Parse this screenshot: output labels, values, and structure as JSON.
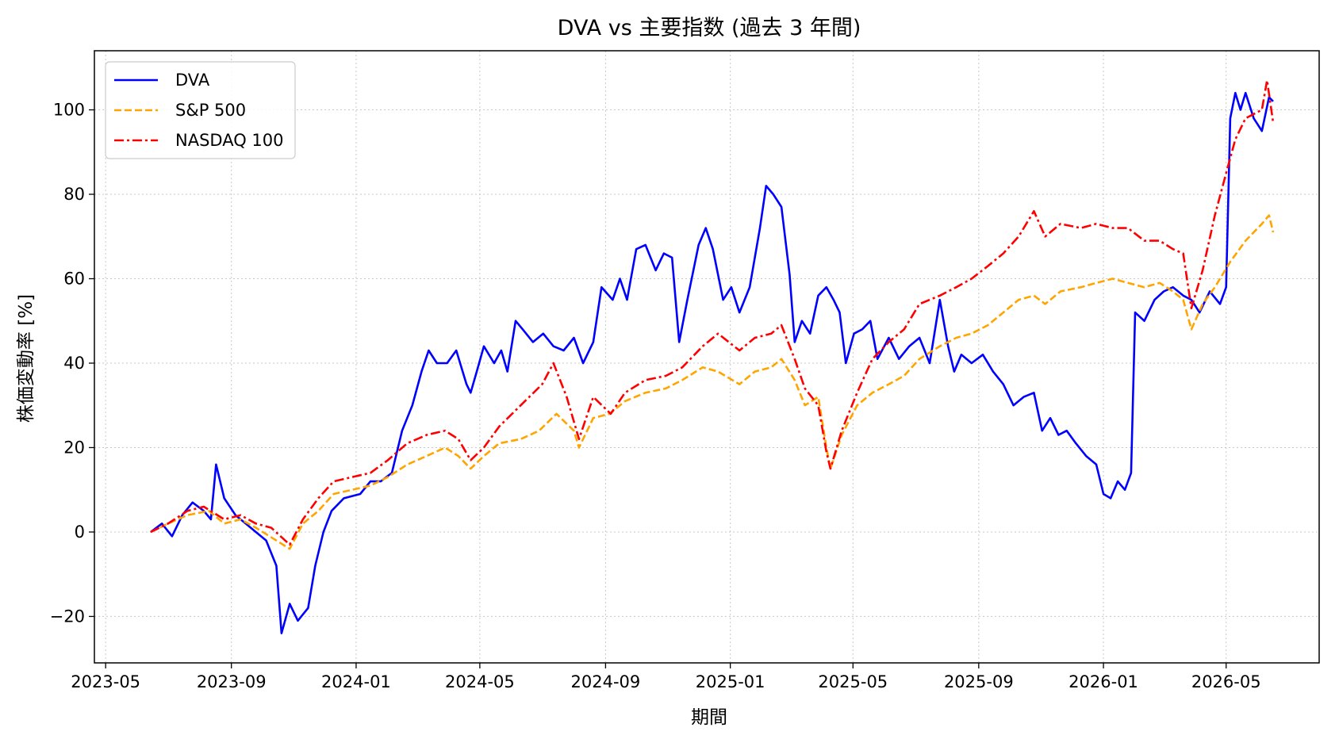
{
  "chart_data": {
    "type": "line",
    "title": "DVA vs 主要指数 (過去 3 年間)",
    "xlabel": "期間",
    "ylabel": "株価変動率 [%]",
    "x_ticks": [
      "2023-05",
      "2023-09",
      "2024-01",
      "2024-05",
      "2024-09",
      "2025-01",
      "2025-05",
      "2025-09",
      "2026-01",
      "2026-05"
    ],
    "y_ticks": [
      -20,
      0,
      20,
      40,
      60,
      80,
      100
    ],
    "xlim": [
      "2023-04-20",
      "2026-07-31"
    ],
    "ylim": [
      -31,
      114
    ],
    "grid": true,
    "legend_position": "top-left",
    "series": [
      {
        "name": "DVA",
        "color": "#0000ff",
        "style": "solid",
        "points": [
          [
            "2023-06-14",
            0
          ],
          [
            "2023-06-25",
            2
          ],
          [
            "2023-07-05",
            -1
          ],
          [
            "2023-07-15",
            4
          ],
          [
            "2023-07-25",
            7
          ],
          [
            "2023-08-05",
            5
          ],
          [
            "2023-08-12",
            3
          ],
          [
            "2023-08-17",
            16
          ],
          [
            "2023-08-25",
            8
          ],
          [
            "2023-09-05",
            4
          ],
          [
            "2023-09-15",
            2
          ],
          [
            "2023-09-25",
            0
          ],
          [
            "2023-10-05",
            -2
          ],
          [
            "2023-10-15",
            -8
          ],
          [
            "2023-10-20",
            -24
          ],
          [
            "2023-10-28",
            -17
          ],
          [
            "2023-11-05",
            -21
          ],
          [
            "2023-11-15",
            -18
          ],
          [
            "2023-11-22",
            -8
          ],
          [
            "2023-11-30",
            0
          ],
          [
            "2023-12-08",
            5
          ],
          [
            "2023-12-20",
            8
          ],
          [
            "2024-01-05",
            9
          ],
          [
            "2024-01-15",
            12
          ],
          [
            "2024-01-25",
            12
          ],
          [
            "2024-02-05",
            14
          ],
          [
            "2024-02-15",
            24
          ],
          [
            "2024-02-25",
            30
          ],
          [
            "2024-03-05",
            38
          ],
          [
            "2024-03-12",
            43
          ],
          [
            "2024-03-20",
            40
          ],
          [
            "2024-03-30",
            40
          ],
          [
            "2024-04-08",
            43
          ],
          [
            "2024-04-18",
            35
          ],
          [
            "2024-04-22",
            33
          ],
          [
            "2024-04-28",
            38
          ],
          [
            "2024-05-05",
            44
          ],
          [
            "2024-05-15",
            40
          ],
          [
            "2024-05-22",
            43
          ],
          [
            "2024-05-28",
            38
          ],
          [
            "2024-06-05",
            50
          ],
          [
            "2024-06-12",
            48
          ],
          [
            "2024-06-22",
            45
          ],
          [
            "2024-07-02",
            47
          ],
          [
            "2024-07-12",
            44
          ],
          [
            "2024-07-22",
            43
          ],
          [
            "2024-08-01",
            46
          ],
          [
            "2024-08-10",
            40
          ],
          [
            "2024-08-20",
            45
          ],
          [
            "2024-08-28",
            58
          ],
          [
            "2024-09-08",
            55
          ],
          [
            "2024-09-15",
            60
          ],
          [
            "2024-09-22",
            55
          ],
          [
            "2024-10-01",
            67
          ],
          [
            "2024-10-10",
            68
          ],
          [
            "2024-10-20",
            62
          ],
          [
            "2024-10-28",
            66
          ],
          [
            "2024-11-05",
            65
          ],
          [
            "2024-11-12",
            45
          ],
          [
            "2024-11-20",
            55
          ],
          [
            "2024-12-01",
            68
          ],
          [
            "2024-12-08",
            72
          ],
          [
            "2024-12-15",
            67
          ],
          [
            "2024-12-25",
            55
          ],
          [
            "2025-01-02",
            58
          ],
          [
            "2025-01-10",
            52
          ],
          [
            "2025-01-20",
            58
          ],
          [
            "2025-01-30",
            72
          ],
          [
            "2025-02-05",
            82
          ],
          [
            "2025-02-12",
            80
          ],
          [
            "2025-02-20",
            77
          ],
          [
            "2025-02-28",
            61
          ],
          [
            "2025-03-05",
            45
          ],
          [
            "2025-03-12",
            50
          ],
          [
            "2025-03-20",
            47
          ],
          [
            "2025-03-28",
            56
          ],
          [
            "2025-04-05",
            58
          ],
          [
            "2025-04-12",
            55
          ],
          [
            "2025-04-18",
            52
          ],
          [
            "2025-04-24",
            40
          ],
          [
            "2025-05-02",
            47
          ],
          [
            "2025-05-10",
            48
          ],
          [
            "2025-05-18",
            50
          ],
          [
            "2025-05-25",
            41
          ],
          [
            "2025-06-05",
            46
          ],
          [
            "2025-06-15",
            41
          ],
          [
            "2025-06-25",
            44
          ],
          [
            "2025-07-05",
            46
          ],
          [
            "2025-07-15",
            40
          ],
          [
            "2025-07-25",
            55
          ],
          [
            "2025-08-02",
            44
          ],
          [
            "2025-08-08",
            38
          ],
          [
            "2025-08-15",
            42
          ],
          [
            "2025-08-25",
            40
          ],
          [
            "2025-09-05",
            42
          ],
          [
            "2025-09-15",
            38
          ],
          [
            "2025-09-25",
            35
          ],
          [
            "2025-10-05",
            30
          ],
          [
            "2025-10-15",
            32
          ],
          [
            "2025-10-25",
            33
          ],
          [
            "2025-11-02",
            24
          ],
          [
            "2025-11-10",
            27
          ],
          [
            "2025-11-18",
            23
          ],
          [
            "2025-11-26",
            24
          ],
          [
            "2025-12-05",
            21
          ],
          [
            "2025-12-15",
            18
          ],
          [
            "2025-12-25",
            16
          ],
          [
            "2026-01-01",
            9
          ],
          [
            "2026-01-08",
            8
          ],
          [
            "2026-01-15",
            12
          ],
          [
            "2026-01-22",
            10
          ],
          [
            "2026-01-28",
            14
          ],
          [
            "2026-02-01",
            52
          ],
          [
            "2026-02-10",
            50
          ],
          [
            "2026-02-20",
            55
          ],
          [
            "2026-03-01",
            57
          ],
          [
            "2026-03-10",
            58
          ],
          [
            "2026-03-20",
            56
          ],
          [
            "2026-03-28",
            55
          ],
          [
            "2026-04-05",
            52
          ],
          [
            "2026-04-15",
            57
          ],
          [
            "2026-04-25",
            54
          ],
          [
            "2026-05-01",
            58
          ],
          [
            "2026-05-05",
            98
          ],
          [
            "2026-05-10",
            104
          ],
          [
            "2026-05-15",
            100
          ],
          [
            "2026-05-20",
            104
          ],
          [
            "2026-05-28",
            98
          ],
          [
            "2026-06-05",
            95
          ],
          [
            "2026-06-12",
            103
          ],
          [
            "2026-06-16",
            102
          ]
        ]
      },
      {
        "name": "S&P 500",
        "color": "#ffa500",
        "style": "dashed",
        "points": [
          [
            "2023-06-14",
            0
          ],
          [
            "2023-07-01",
            2
          ],
          [
            "2023-07-20",
            4
          ],
          [
            "2023-08-10",
            5
          ],
          [
            "2023-08-25",
            2
          ],
          [
            "2023-09-10",
            3
          ],
          [
            "2023-09-25",
            1
          ],
          [
            "2023-10-15",
            -2
          ],
          [
            "2023-10-28",
            -4
          ],
          [
            "2023-11-10",
            2
          ],
          [
            "2023-11-25",
            5
          ],
          [
            "2023-12-10",
            9
          ],
          [
            "2023-12-28",
            10
          ],
          [
            "2024-01-15",
            11
          ],
          [
            "2024-02-01",
            13
          ],
          [
            "2024-02-20",
            16
          ],
          [
            "2024-03-10",
            18
          ],
          [
            "2024-03-28",
            20
          ],
          [
            "2024-04-10",
            18
          ],
          [
            "2024-04-22",
            15
          ],
          [
            "2024-05-05",
            18
          ],
          [
            "2024-05-20",
            21
          ],
          [
            "2024-06-10",
            22
          ],
          [
            "2024-06-28",
            24
          ],
          [
            "2024-07-15",
            28
          ],
          [
            "2024-08-01",
            24
          ],
          [
            "2024-08-06",
            20
          ],
          [
            "2024-08-20",
            27
          ],
          [
            "2024-09-05",
            28
          ],
          [
            "2024-09-20",
            31
          ],
          [
            "2024-10-10",
            33
          ],
          [
            "2024-10-30",
            34
          ],
          [
            "2024-11-15",
            36
          ],
          [
            "2024-12-05",
            39
          ],
          [
            "2024-12-20",
            38
          ],
          [
            "2025-01-10",
            35
          ],
          [
            "2025-01-25",
            38
          ],
          [
            "2025-02-10",
            39
          ],
          [
            "2025-02-20",
            41
          ],
          [
            "2025-03-05",
            36
          ],
          [
            "2025-03-15",
            30
          ],
          [
            "2025-03-28",
            32
          ],
          [
            "2025-04-05",
            20
          ],
          [
            "2025-04-09",
            15
          ],
          [
            "2025-04-20",
            23
          ],
          [
            "2025-05-05",
            30
          ],
          [
            "2025-05-20",
            33
          ],
          [
            "2025-06-05",
            35
          ],
          [
            "2025-06-20",
            37
          ],
          [
            "2025-07-05",
            41
          ],
          [
            "2025-07-25",
            44
          ],
          [
            "2025-08-10",
            46
          ],
          [
            "2025-08-25",
            47
          ],
          [
            "2025-09-10",
            49
          ],
          [
            "2025-09-25",
            52
          ],
          [
            "2025-10-10",
            55
          ],
          [
            "2025-10-25",
            56
          ],
          [
            "2025-11-05",
            54
          ],
          [
            "2025-11-20",
            57
          ],
          [
            "2025-12-10",
            58
          ],
          [
            "2025-12-25",
            59
          ],
          [
            "2026-01-10",
            60
          ],
          [
            "2026-01-25",
            59
          ],
          [
            "2026-02-10",
            58
          ],
          [
            "2026-02-25",
            59
          ],
          [
            "2026-03-10",
            57
          ],
          [
            "2026-03-20",
            55
          ],
          [
            "2026-03-28",
            48
          ],
          [
            "2026-04-08",
            54
          ],
          [
            "2026-04-20",
            58
          ],
          [
            "2026-05-05",
            64
          ],
          [
            "2026-05-20",
            69
          ],
          [
            "2026-06-05",
            73
          ],
          [
            "2026-06-12",
            75
          ],
          [
            "2026-06-16",
            71
          ]
        ]
      },
      {
        "name": "NASDAQ 100",
        "color": "#ff0000",
        "style": "dashdot",
        "points": [
          [
            "2023-06-14",
            0
          ],
          [
            "2023-07-01",
            2
          ],
          [
            "2023-07-20",
            5
          ],
          [
            "2023-08-05",
            6
          ],
          [
            "2023-08-25",
            3
          ],
          [
            "2023-09-10",
            4
          ],
          [
            "2023-09-25",
            2
          ],
          [
            "2023-10-10",
            1
          ],
          [
            "2023-10-28",
            -3
          ],
          [
            "2023-11-10",
            3
          ],
          [
            "2023-11-25",
            8
          ],
          [
            "2023-12-10",
            12
          ],
          [
            "2023-12-28",
            13
          ],
          [
            "2024-01-15",
            14
          ],
          [
            "2024-02-01",
            17
          ],
          [
            "2024-02-20",
            21
          ],
          [
            "2024-03-10",
            23
          ],
          [
            "2024-03-28",
            24
          ],
          [
            "2024-04-10",
            22
          ],
          [
            "2024-04-22",
            17
          ],
          [
            "2024-05-05",
            20
          ],
          [
            "2024-05-20",
            25
          ],
          [
            "2024-06-10",
            30
          ],
          [
            "2024-07-01",
            35
          ],
          [
            "2024-07-12",
            40
          ],
          [
            "2024-07-25",
            32
          ],
          [
            "2024-08-06",
            22
          ],
          [
            "2024-08-20",
            32
          ],
          [
            "2024-09-06",
            28
          ],
          [
            "2024-09-20",
            33
          ],
          [
            "2024-10-10",
            36
          ],
          [
            "2024-10-30",
            37
          ],
          [
            "2024-11-15",
            39
          ],
          [
            "2024-12-05",
            44
          ],
          [
            "2024-12-20",
            47
          ],
          [
            "2025-01-10",
            43
          ],
          [
            "2025-01-25",
            46
          ],
          [
            "2025-02-10",
            47
          ],
          [
            "2025-02-20",
            49
          ],
          [
            "2025-03-05",
            41
          ],
          [
            "2025-03-15",
            34
          ],
          [
            "2025-03-28",
            30
          ],
          [
            "2025-04-05",
            19
          ],
          [
            "2025-04-09",
            15
          ],
          [
            "2025-04-20",
            24
          ],
          [
            "2025-05-05",
            33
          ],
          [
            "2025-05-20",
            41
          ],
          [
            "2025-06-05",
            45
          ],
          [
            "2025-06-20",
            48
          ],
          [
            "2025-07-05",
            54
          ],
          [
            "2025-07-25",
            56
          ],
          [
            "2025-08-10",
            58
          ],
          [
            "2025-08-25",
            60
          ],
          [
            "2025-09-10",
            63
          ],
          [
            "2025-09-25",
            66
          ],
          [
            "2025-10-10",
            70
          ],
          [
            "2025-10-25",
            76
          ],
          [
            "2025-11-05",
            70
          ],
          [
            "2025-11-20",
            73
          ],
          [
            "2025-12-10",
            72
          ],
          [
            "2025-12-25",
            73
          ],
          [
            "2026-01-10",
            72
          ],
          [
            "2026-01-25",
            72
          ],
          [
            "2026-02-10",
            69
          ],
          [
            "2026-02-25",
            69
          ],
          [
            "2026-03-10",
            67
          ],
          [
            "2026-03-20",
            66
          ],
          [
            "2026-03-28",
            53
          ],
          [
            "2026-04-08",
            62
          ],
          [
            "2026-04-20",
            75
          ],
          [
            "2026-05-01",
            85
          ],
          [
            "2026-05-10",
            93
          ],
          [
            "2026-05-20",
            98
          ],
          [
            "2026-06-05",
            100
          ],
          [
            "2026-06-10",
            107
          ],
          [
            "2026-06-16",
            97
          ]
        ]
      }
    ]
  }
}
